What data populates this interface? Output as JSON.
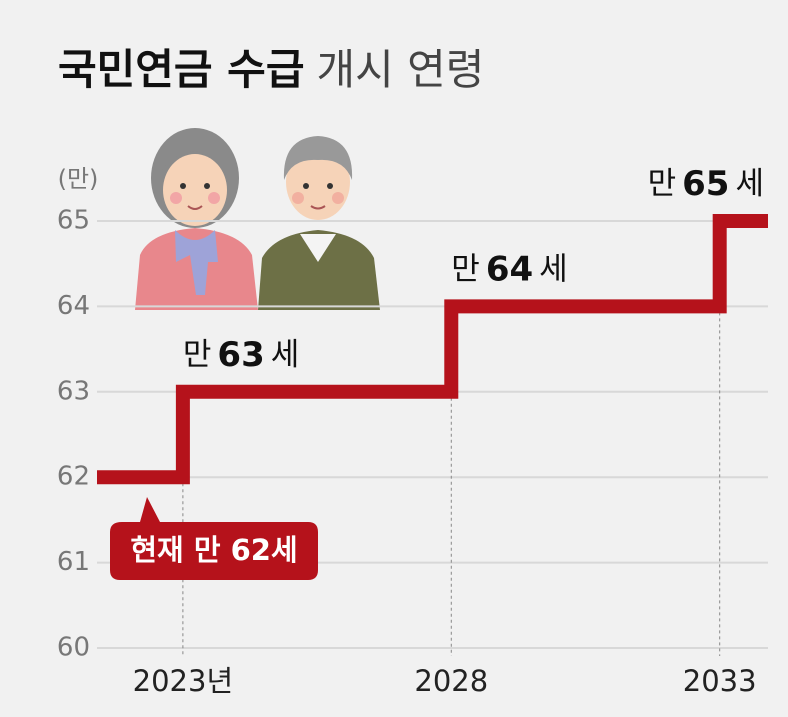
{
  "chart_data": {
    "type": "step",
    "title": "국민연금 수급",
    "subtitle": "개시 연령",
    "y_unit": "(만)",
    "x": [
      2021.4,
      2023,
      2023,
      2028,
      2028,
      2033,
      2033,
      2033.9
    ],
    "values": [
      62,
      62,
      63,
      63,
      64,
      64,
      65,
      65
    ],
    "color": "#b5121b",
    "xlim": [
      2021.4,
      2033.9
    ],
    "xticks": [
      {
        "value": 2023,
        "label": "2023년"
      },
      2028,
      2033
    ],
    "ylim": [
      60,
      65
    ],
    "yticks": [
      60,
      61,
      62,
      63,
      64,
      65
    ],
    "grid": true,
    "annotations": [
      {
        "parts": [
          "만",
          "63",
          "세"
        ]
      },
      {
        "parts": [
          "만",
          "64",
          "세"
        ]
      },
      {
        "parts": [
          "만",
          "65",
          "세"
        ]
      }
    ],
    "callout": "현재 만 62세"
  }
}
